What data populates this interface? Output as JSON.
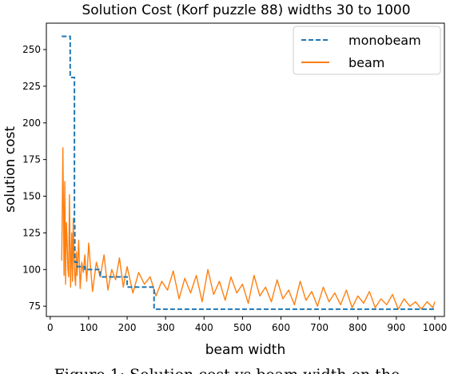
{
  "chart_data": {
    "type": "line",
    "title": "Solution Cost (Korf puzzle 88) widths 30 to 1000",
    "xlabel": "beam width",
    "ylabel": "solution cost",
    "xlim": [
      -10,
      1025
    ],
    "ylim": [
      68,
      268
    ],
    "xticks": [
      0,
      100,
      200,
      300,
      400,
      500,
      600,
      700,
      800,
      900,
      1000
    ],
    "yticks": [
      75,
      100,
      125,
      150,
      175,
      200,
      225,
      250
    ],
    "grid": false,
    "legend_position": "top-right",
    "series": [
      {
        "name": "monobeam",
        "style": "dashed",
        "color": "#1f77b4",
        "x": [
          30,
          52,
          52,
          63,
          63,
          64,
          64,
          70,
          70,
          90,
          90,
          130,
          130,
          200,
          200,
          270,
          270,
          1000
        ],
        "y": [
          259,
          259,
          231,
          231,
          130,
          130,
          105,
          105,
          102,
          102,
          100,
          100,
          95,
          95,
          88,
          88,
          73,
          73
        ]
      },
      {
        "name": "beam",
        "style": "solid",
        "color": "#ff7f0e",
        "x": [
          30,
          33,
          36,
          38,
          40,
          42,
          44,
          46,
          48,
          50,
          53,
          56,
          58,
          60,
          62,
          64,
          66,
          68,
          70,
          74,
          78,
          82,
          86,
          90,
          95,
          100,
          110,
          120,
          130,
          140,
          150,
          160,
          170,
          180,
          190,
          200,
          215,
          230,
          245,
          260,
          275,
          290,
          305,
          320,
          335,
          350,
          365,
          380,
          395,
          410,
          425,
          440,
          455,
          470,
          485,
          500,
          515,
          530,
          545,
          560,
          575,
          590,
          605,
          620,
          635,
          650,
          665,
          680,
          695,
          710,
          725,
          740,
          755,
          770,
          785,
          800,
          815,
          830,
          845,
          860,
          875,
          890,
          905,
          920,
          935,
          950,
          965,
          980,
          995,
          1000
        ],
        "y": [
          106,
          183,
          96,
          160,
          90,
          132,
          120,
          100,
          95,
          151,
          88,
          125,
          92,
          135,
          108,
          95,
          89,
          112,
          96,
          120,
          87,
          105,
          98,
          110,
          92,
          118,
          85,
          105,
          95,
          110,
          86,
          100,
          93,
          108,
          88,
          102,
          84,
          98,
          90,
          95,
          82,
          92,
          86,
          99,
          80,
          94,
          84,
          96,
          78,
          100,
          83,
          92,
          79,
          95,
          84,
          90,
          77,
          96,
          82,
          88,
          78,
          93,
          80,
          86,
          76,
          92,
          79,
          85,
          75,
          88,
          78,
          84,
          76,
          86,
          74,
          82,
          77,
          85,
          74,
          80,
          76,
          83,
          73,
          80,
          75,
          78,
          73,
          78,
          74,
          78
        ]
      }
    ]
  },
  "caption": "Figure 1: Solution cost vs beam width on the"
}
